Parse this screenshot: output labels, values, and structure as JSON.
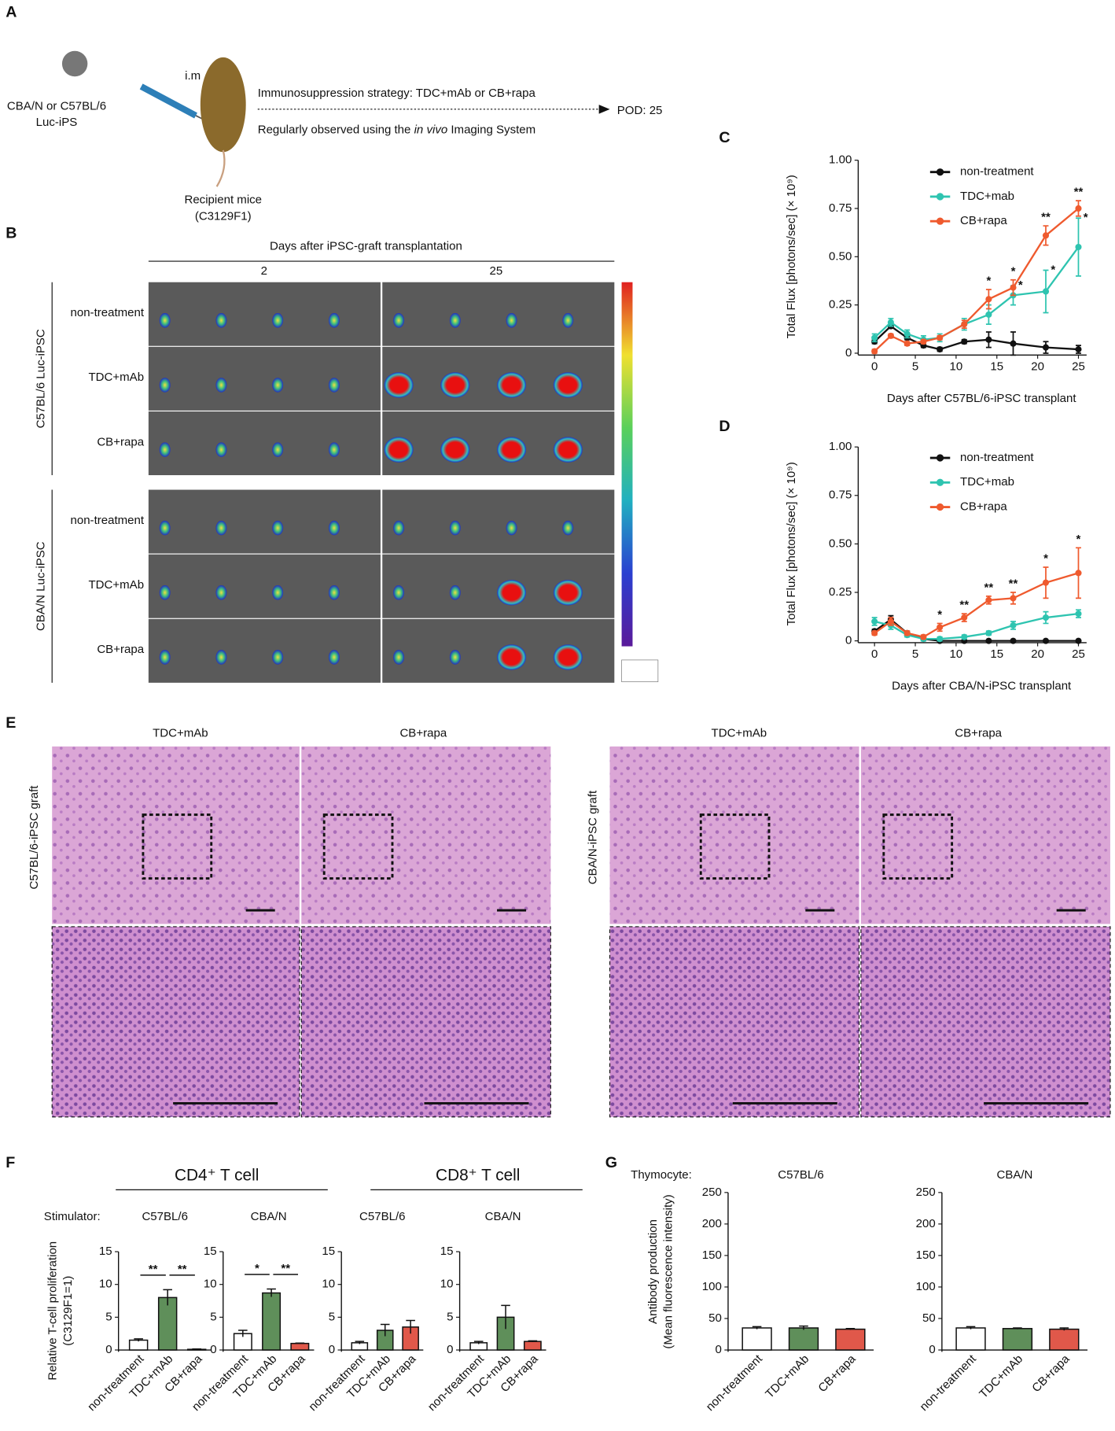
{
  "panels": {
    "A": {
      "letter": "A",
      "cells_line1": "CBA/N or C57BL/6",
      "cells_line2": "Luc-iPS",
      "route": "i.m",
      "mice_line1": "Recipient mice",
      "mice_line2": "(C3129F1)",
      "strategy": "Immunosuppression strategy: TDC+mAb or CB+rapa",
      "observed_pre": "Regularly observed using the ",
      "observed_italic": "in vivo",
      "observed_post": " Imaging System",
      "endpoint": "POD: 25"
    },
    "B": {
      "letter": "B",
      "header": "Days after iPSC-graft transplantation",
      "days": [
        "2",
        "25"
      ],
      "groups": [
        {
          "label": "C57BL/6 Luc-iPSC",
          "rows": [
            "non-treatment",
            "TDC+mAb",
            "CB+rapa"
          ]
        },
        {
          "label": "CBA/N Luc-iPSC",
          "rows": [
            "non-treatment",
            "TDC+mAb",
            "CB+rapa"
          ]
        }
      ]
    },
    "C": {
      "letter": "C"
    },
    "D": {
      "letter": "D"
    },
    "E": {
      "letter": "E",
      "columns": [
        "TDC+mAb",
        "CB+rapa",
        "TDC+mAb",
        "CB+rapa"
      ],
      "rows": [
        "C57BL/6-iPSC graft",
        "CBA/N-iPSC graft"
      ]
    },
    "F": {
      "letter": "F",
      "cd4": "CD4⁺ T cell",
      "cd8": "CD8⁺ T cell",
      "stimulator": "Stimulator:",
      "ylabel_line1": "Relative T-cell proliferation",
      "ylabel_line2": "(C3129F1=1)"
    },
    "G": {
      "letter": "G",
      "thymocyte": "Thymocyte:",
      "ylabel_line1": "Antibody production",
      "ylabel_line2": "(Mean fluorescence intensity)"
    }
  },
  "chart_data": [
    {
      "type": "line",
      "xlabel": "Days after C57BL/6-iPSC transplant",
      "ylabel": "Total Flux [photons/sec] (× 10⁹)",
      "x": [
        0,
        2,
        4,
        6,
        8,
        11,
        14,
        17,
        21,
        25
      ],
      "xlim": [
        -2,
        26
      ],
      "xticks": [
        0,
        5,
        10,
        15,
        20,
        25
      ],
      "ylim": [
        0,
        1
      ],
      "yticks": [
        0,
        0.25,
        {
          "value": 0.5,
          "label": "0.50"
        },
        0.75,
        {
          "value": 1,
          "label": "1.00"
        }
      ],
      "series": [
        {
          "name": "non-treatment",
          "color": "#111111",
          "values": [
            0.06,
            0.14,
            0.08,
            0.04,
            0.02,
            0.06,
            0.07,
            0.05,
            0.03,
            0.02
          ],
          "errors": [
            0.01,
            0.01,
            0.01,
            0.01,
            0.01,
            0.01,
            0.04,
            0.06,
            0.03,
            0.02
          ]
        },
        {
          "name": "TDC+mab",
          "color": "#2ec4b0",
          "values": [
            0.08,
            0.16,
            0.1,
            0.07,
            0.08,
            0.15,
            0.2,
            0.3,
            0.32,
            0.55
          ],
          "errors": [
            0.02,
            0.02,
            0.02,
            0.02,
            0.02,
            0.03,
            0.05,
            0.05,
            0.11,
            0.15
          ],
          "significance": [
            null,
            null,
            null,
            null,
            null,
            null,
            null,
            "*",
            "*",
            "*"
          ]
        },
        {
          "name": "CB+rapa",
          "color": "#ef5a2e",
          "values": [
            0.01,
            0.09,
            0.05,
            0.06,
            0.08,
            0.15,
            0.28,
            0.34,
            0.61,
            0.75
          ],
          "errors": [
            0.01,
            0.01,
            0.01,
            0.01,
            0.01,
            0.02,
            0.05,
            0.04,
            0.05,
            0.04
          ],
          "significance": [
            null,
            null,
            null,
            null,
            null,
            null,
            "*",
            "*",
            "**",
            "**"
          ]
        }
      ]
    },
    {
      "type": "line",
      "xlabel": "Days after CBA/N-iPSC transplant",
      "ylabel": "Total Flux [photons/sec] (× 10⁹)",
      "x": [
        0,
        2,
        4,
        6,
        8,
        11,
        14,
        17,
        21,
        25
      ],
      "xlim": [
        -2,
        26
      ],
      "xticks": [
        0,
        5,
        10,
        15,
        20,
        25
      ],
      "ylim": [
        0,
        1
      ],
      "yticks": [
        0,
        0.25,
        {
          "value": 0.5,
          "label": "0.50"
        },
        0.75,
        {
          "value": 1,
          "label": "1.00"
        }
      ],
      "series": [
        {
          "name": "non-treatment",
          "color": "#111111",
          "values": [
            0.05,
            0.11,
            0.04,
            0.01,
            0,
            0,
            0,
            0,
            0,
            0
          ],
          "errors": [
            0.01,
            0.02,
            0.01,
            0.01,
            0,
            0,
            0,
            0,
            0,
            0
          ]
        },
        {
          "name": "TDC+mab",
          "color": "#2ec4b0",
          "values": [
            0.1,
            0.08,
            0.03,
            0.01,
            0.01,
            0.02,
            0.04,
            0.08,
            0.12,
            0.14
          ],
          "errors": [
            0.02,
            0.02,
            0.01,
            0.01,
            0.01,
            0.01,
            0.01,
            0.02,
            0.03,
            0.02
          ]
        },
        {
          "name": "CB+rapa",
          "color": "#ef5a2e",
          "values": [
            0.04,
            0.1,
            0.04,
            0.02,
            0.07,
            0.12,
            0.21,
            0.22,
            0.3,
            0.35
          ],
          "errors": [
            0.01,
            0.02,
            0.01,
            0.01,
            0.02,
            0.02,
            0.02,
            0.03,
            0.08,
            0.13
          ],
          "significance": [
            null,
            null,
            null,
            null,
            "*",
            "**",
            "**",
            "**",
            "*",
            "*"
          ]
        }
      ]
    },
    {
      "type": "bar",
      "title": "C57BL/6",
      "categories": [
        "non-treatment",
        "TDC+mAb",
        "CB+rapa"
      ],
      "colors": [
        "#ffffff",
        "#5f8f5a",
        "#e0584a"
      ],
      "values": [
        1.5,
        8.0,
        0.1
      ],
      "errors": [
        0.2,
        1.2,
        0.05
      ],
      "significance": [
        "**",
        "**"
      ],
      "ylim": [
        0,
        15
      ],
      "yticks": [
        0,
        5,
        10,
        15
      ]
    },
    {
      "type": "bar",
      "title": "CBA/N",
      "categories": [
        "non-treatment",
        "TDC+mAb",
        "CB+rapa"
      ],
      "colors": [
        "#ffffff",
        "#5f8f5a",
        "#e0584a"
      ],
      "values": [
        2.5,
        8.7,
        1.0
      ],
      "errors": [
        0.5,
        0.6,
        0.05
      ],
      "significance": [
        "*",
        "**"
      ],
      "ylim": [
        0,
        15
      ],
      "yticks": [
        0,
        5,
        10,
        15
      ]
    },
    {
      "type": "bar",
      "title": "C57BL/6",
      "categories": [
        "non-treatment",
        "TDC+mAb",
        "CB+rapa"
      ],
      "colors": [
        "#ffffff",
        "#5f8f5a",
        "#e0584a"
      ],
      "values": [
        1.1,
        3.0,
        3.5
      ],
      "errors": [
        0.2,
        0.9,
        1.0
      ],
      "ylim": [
        0,
        15
      ],
      "yticks": [
        0,
        5,
        10,
        15
      ]
    },
    {
      "type": "bar",
      "title": "CBA/N",
      "categories": [
        "non-treatment",
        "TDC+mAb",
        "CB+rapa"
      ],
      "colors": [
        "#ffffff",
        "#5f8f5a",
        "#e0584a"
      ],
      "values": [
        1.1,
        5.0,
        1.3
      ],
      "errors": [
        0.2,
        1.8,
        0.1
      ],
      "ylim": [
        0,
        15
      ],
      "yticks": [
        0,
        5,
        10,
        15
      ]
    },
    {
      "type": "bar",
      "title": "C57BL/6",
      "categories": [
        "non-treatment",
        "TDC+mAb",
        "CB+rapa"
      ],
      "colors": [
        "#ffffff",
        "#5f8f5a",
        "#e0584a"
      ],
      "values": [
        35,
        35,
        33
      ],
      "errors": [
        2,
        3,
        1
      ],
      "ylim": [
        0,
        250
      ],
      "yticks": [
        0,
        50,
        100,
        150,
        200,
        250
      ]
    },
    {
      "type": "bar",
      "title": "CBA/N",
      "categories": [
        "non-treatment",
        "TDC+mAb",
        "CB+rapa"
      ],
      "colors": [
        "#ffffff",
        "#5f8f5a",
        "#e0584a"
      ],
      "values": [
        35,
        34,
        33
      ],
      "errors": [
        2,
        1,
        2
      ],
      "ylim": [
        0,
        250
      ],
      "yticks": [
        0,
        50,
        100,
        150,
        200,
        250
      ]
    }
  ]
}
